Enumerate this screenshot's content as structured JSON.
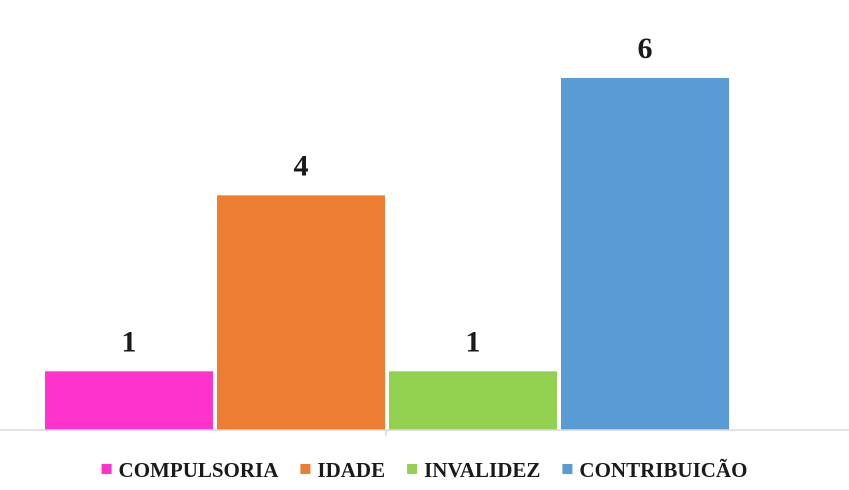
{
  "chart_data": {
    "type": "bar",
    "categories": [
      "COMPULSORIA",
      "IDADE",
      "INVALIDEZ",
      "CONTRIBUICÃO"
    ],
    "values": [
      1,
      4,
      1,
      6
    ],
    "colors": [
      "#FF33CC",
      "#ED7D31",
      "#92D050",
      "#5B9BD5"
    ],
    "data_labels": [
      "1",
      "4",
      "1",
      "6"
    ],
    "title": "",
    "xlabel": "",
    "ylabel": "",
    "ylim": [
      0,
      6
    ],
    "grid": false,
    "legend": "bottom",
    "legend_entries": [
      "COMPULSORIA",
      "IDADE",
      "INVALIDEZ",
      "CONTRIBUICÃO"
    ]
  }
}
